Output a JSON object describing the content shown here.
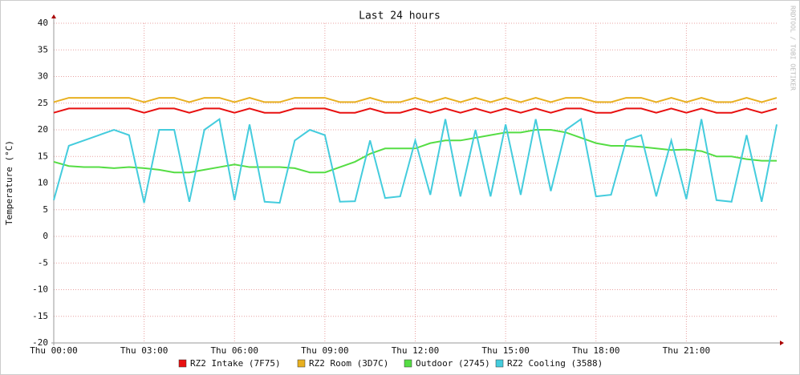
{
  "chart_data": {
    "type": "line",
    "title": "Last 24 hours",
    "y_label": "Temperature (°C)",
    "watermark": "RRDTOOL / TOBI OETIKER",
    "x": [
      0,
      0.5,
      1,
      1.5,
      2,
      2.5,
      3,
      3.5,
      4,
      4.5,
      5,
      5.5,
      6,
      6.5,
      7,
      7.5,
      8,
      8.5,
      9,
      9.5,
      10,
      10.5,
      11,
      11.5,
      12,
      12.5,
      13,
      13.5,
      14,
      14.5,
      15,
      15.5,
      16,
      16.5,
      17,
      17.5,
      18,
      18.5,
      19,
      19.5,
      20,
      20.5,
      21,
      21.5,
      22,
      22.5,
      23,
      23.5,
      24
    ],
    "xlim": [
      0,
      24
    ],
    "xticks": [
      {
        "value": 0,
        "label": "Thu 00:00"
      },
      {
        "value": 3,
        "label": "Thu 03:00"
      },
      {
        "value": 6,
        "label": "Thu 06:00"
      },
      {
        "value": 9,
        "label": "Thu 09:00"
      },
      {
        "value": 12,
        "label": "Thu 12:00"
      },
      {
        "value": 15,
        "label": "Thu 15:00"
      },
      {
        "value": 18,
        "label": "Thu 18:00"
      },
      {
        "value": 21,
        "label": "Thu 21:00"
      }
    ],
    "ylim": [
      -20,
      40
    ],
    "yticks": [
      -20,
      -15,
      -10,
      -5,
      0,
      5,
      10,
      15,
      20,
      25,
      30,
      35,
      40
    ],
    "grid": true,
    "series": [
      {
        "name": "RZ2 Intake (7F75)",
        "color": "#e81010",
        "values": [
          23.2,
          24,
          24,
          24,
          24,
          24,
          23.2,
          24,
          24,
          23.2,
          24,
          24,
          23.2,
          24,
          23.2,
          23.2,
          24,
          24,
          24,
          23.2,
          23.2,
          24,
          23.2,
          23.2,
          24,
          23.2,
          24,
          23.2,
          24,
          23.2,
          24,
          23.2,
          24,
          23.2,
          24,
          24,
          23.2,
          23.2,
          24,
          24,
          23.2,
          24,
          23.2,
          24,
          23.2,
          23.2,
          24,
          23.2,
          24
        ]
      },
      {
        "name": "RZ2 Room (3D7C)",
        "color": "#e8b020",
        "values": [
          25.2,
          26,
          26,
          26,
          26,
          26,
          25.2,
          26,
          26,
          25.2,
          26,
          26,
          25.2,
          26,
          25.2,
          25.2,
          26,
          26,
          26,
          25.2,
          25.2,
          26,
          25.2,
          25.2,
          26,
          25.2,
          26,
          25.2,
          26,
          25.2,
          26,
          25.2,
          26,
          25.2,
          26,
          26,
          25.2,
          25.2,
          26,
          26,
          25.2,
          26,
          25.2,
          26,
          25.2,
          25.2,
          26,
          25.2,
          26
        ]
      },
      {
        "name": "Outdoor (2745)",
        "color": "#55dd44",
        "values": [
          14,
          13.2,
          13,
          13,
          12.8,
          13,
          12.8,
          12.5,
          12,
          12,
          12.5,
          13,
          13.5,
          13,
          13,
          13,
          12.8,
          12,
          12,
          13,
          14,
          15.5,
          16.5,
          16.5,
          16.5,
          17.5,
          18,
          18,
          18.5,
          19,
          19.5,
          19.5,
          20,
          20,
          19.5,
          18.5,
          17.5,
          17,
          17,
          16.8,
          16.5,
          16.2,
          16.3,
          16,
          15,
          15,
          14.5,
          14.2,
          14.2
        ]
      },
      {
        "name": "RZ2 Cooling (3588)",
        "color": "#44ccdd",
        "values": [
          6.8,
          17,
          18,
          19,
          20,
          19,
          6.3,
          20,
          20,
          6.5,
          20,
          22,
          6.8,
          21,
          6.5,
          6.3,
          18,
          20,
          19,
          6.5,
          6.6,
          18,
          7.2,
          7.5,
          18,
          7.8,
          22,
          7.5,
          20,
          7.5,
          21,
          7.8,
          22,
          8.5,
          20,
          22,
          7.5,
          7.8,
          18,
          19,
          7.5,
          18,
          7,
          22,
          6.8,
          6.5,
          19,
          6.5,
          21
        ]
      }
    ]
  }
}
